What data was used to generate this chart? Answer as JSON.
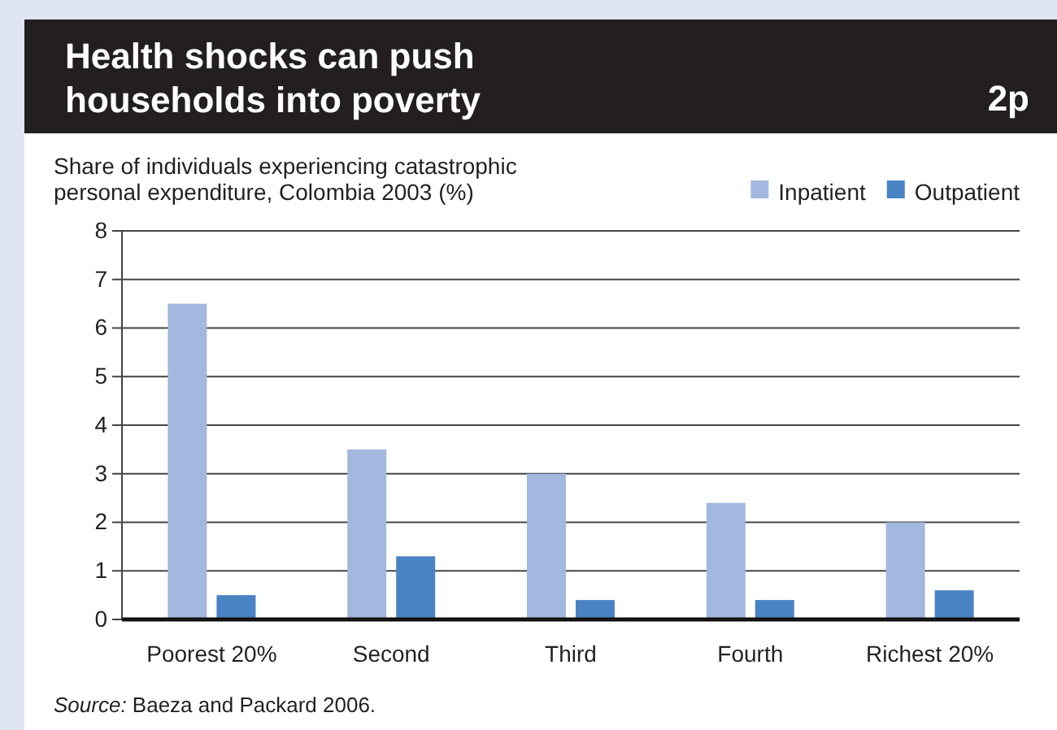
{
  "chart_data": {
    "type": "bar",
    "title": "Health shocks can push households into poverty",
    "ylabel": "Share of individuals experiencing catastrophic personal expenditure, Colombia 2003 (%)",
    "categories": [
      "Poorest 20%",
      "Second",
      "Third",
      "Fourth",
      "Richest 20%"
    ],
    "series": [
      {
        "name": "Inpatient",
        "color": "#a3b8de",
        "values": [
          6.5,
          3.5,
          3.0,
          2.4,
          2.0
        ]
      },
      {
        "name": "Outpatient",
        "color": "#4a83c4",
        "values": [
          0.5,
          1.3,
          0.4,
          0.4,
          0.6
        ]
      }
    ],
    "ylim": [
      0,
      8
    ],
    "yticks": [
      0,
      1,
      2,
      3,
      4,
      5,
      6,
      7,
      8
    ],
    "grid": "y",
    "legend": "top right",
    "annotations": [
      "2p",
      "Source: Baeza and Packard 2006."
    ]
  }
}
